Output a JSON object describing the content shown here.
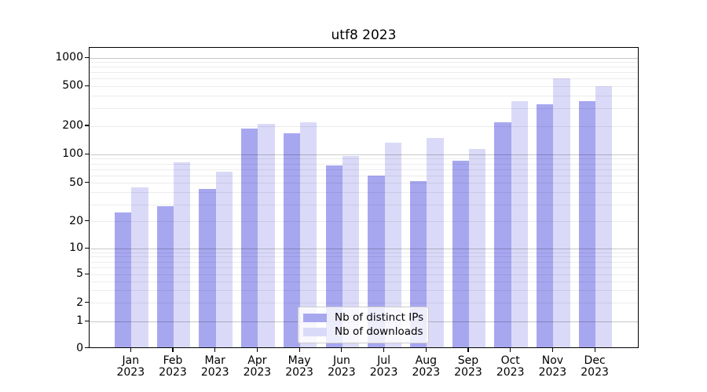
{
  "chart_data": {
    "type": "bar",
    "title": "utf8 2023",
    "categories": [
      "Jan 2023",
      "Feb 2023",
      "Mar 2023",
      "Apr 2023",
      "May 2023",
      "Jun 2023",
      "Jul 2023",
      "Aug 2023",
      "Sep 2023",
      "Oct 2023",
      "Nov 2023",
      "Dec 2023"
    ],
    "series": [
      {
        "name": "Nb of distinct IPs",
        "color": "#a7a7f0",
        "values": [
          25,
          29,
          44,
          190,
          168,
          77,
          60,
          53,
          87,
          220,
          335,
          355
        ]
      },
      {
        "name": "Nb of downloads",
        "color": "#dadaf8",
        "values": [
          45,
          83,
          66,
          212,
          220,
          96,
          134,
          150,
          116,
          360,
          610,
          505
        ]
      }
    ],
    "yticks": [
      0,
      1,
      2,
      5,
      10,
      20,
      50,
      100,
      200,
      500,
      1000
    ],
    "yscale": "symlog",
    "ylim": [
      0,
      1300
    ],
    "grid": true,
    "legend_position": "lower center"
  }
}
